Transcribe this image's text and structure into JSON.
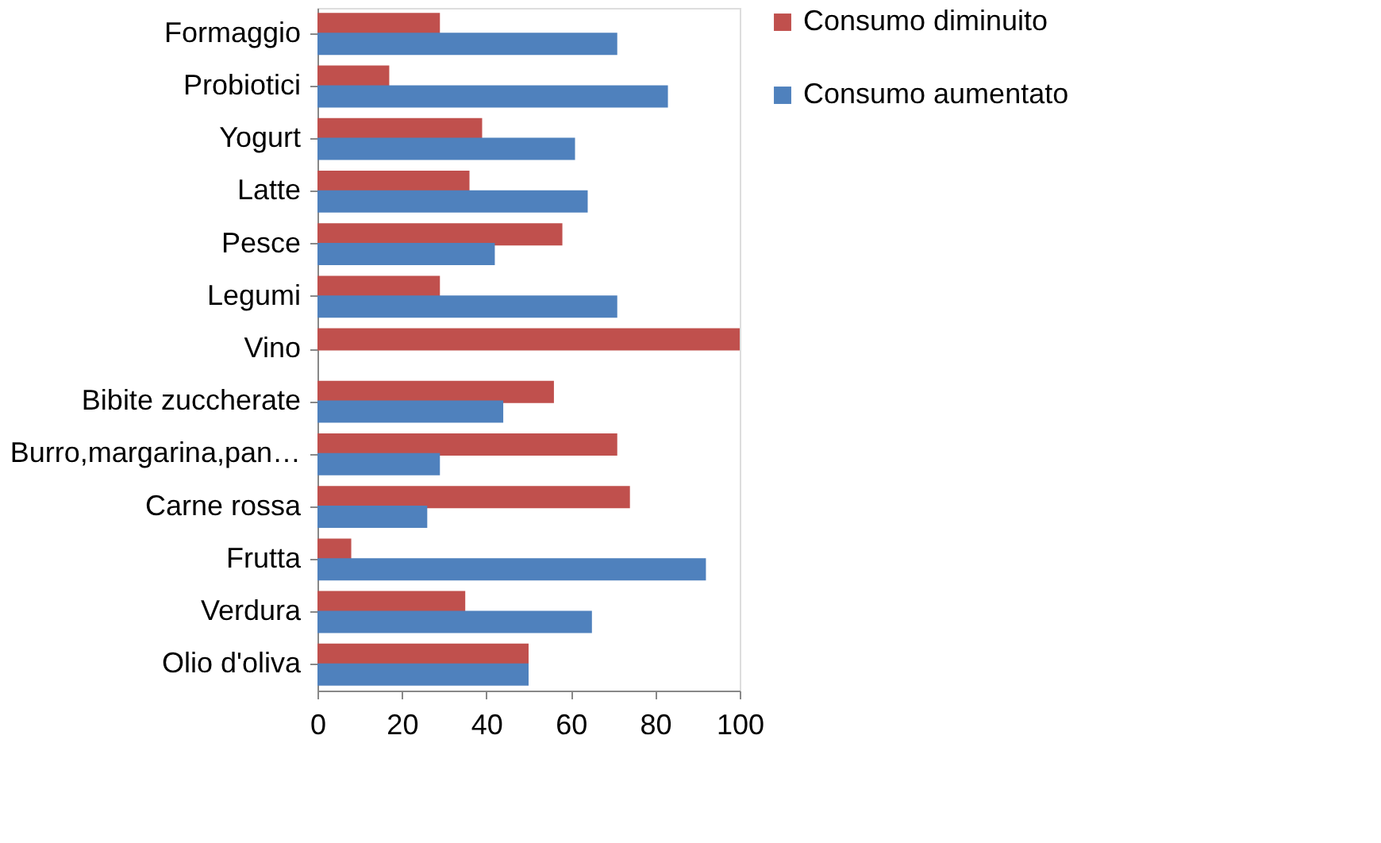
{
  "chart_data": {
    "type": "bar",
    "orientation": "horizontal",
    "categories": [
      "Formaggio",
      "Probiotici",
      "Yogurt",
      "Latte",
      "Pesce",
      "Legumi",
      "Vino",
      "Bibite zuccherate",
      "Burro,margarina,pan…",
      "Carne rossa",
      "Frutta",
      "Verdura",
      "Olio d'oliva"
    ],
    "series": [
      {
        "name": "Consumo diminuito",
        "color": "#c0504d",
        "values": [
          29,
          17,
          39,
          36,
          58,
          29,
          100,
          56,
          71,
          74,
          8,
          35,
          50
        ]
      },
      {
        "name": "Consumo aumentato",
        "color": "#4f81bd",
        "values": [
          71,
          83,
          61,
          64,
          42,
          71,
          0,
          44,
          29,
          26,
          92,
          65,
          50
        ]
      }
    ],
    "xlim": [
      0,
      100
    ],
    "xticks": [
      0,
      20,
      40,
      60,
      80,
      100
    ],
    "grid": false,
    "legend": "right"
  }
}
